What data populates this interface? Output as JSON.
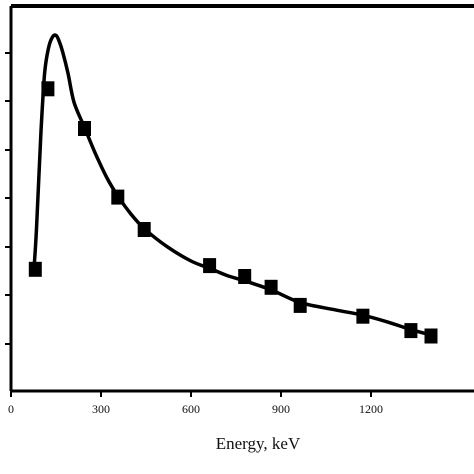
{
  "chart_data": {
    "type": "line",
    "title": "",
    "xlabel": "Energy, keV",
    "ylabel": "",
    "xlim": [
      0,
      1400
    ],
    "xticks": [
      0,
      300,
      600,
      900,
      1200
    ],
    "ylim": [
      0,
      1
    ],
    "y_ticks_count": 8,
    "y_tick_labels_shown": false,
    "grid": false,
    "legend": "none",
    "colors": {
      "line": "#000000",
      "marker": "#000000",
      "axes": "#000000",
      "background": "#ffffff"
    },
    "series": [
      {
        "kind": "markers",
        "x": [
          81,
          123,
          245,
          356,
          444,
          662,
          779,
          867,
          964,
          1173,
          1333,
          1400
        ],
        "y": [
          0.34,
          0.84,
          0.73,
          0.54,
          0.45,
          0.35,
          0.32,
          0.29,
          0.24,
          0.21,
          0.17,
          0.155
        ]
      },
      {
        "kind": "fit-curve",
        "x": [
          75,
          85,
          100,
          112,
          125,
          138,
          150,
          160,
          172,
          190,
          210,
          245,
          280,
          320,
          356,
          400,
          444,
          520,
          600,
          662,
          720,
          779,
          867,
          964,
          1080,
          1173,
          1260,
          1333,
          1400
        ],
        "y": [
          0.32,
          0.45,
          0.72,
          0.88,
          0.95,
          0.98,
          0.985,
          0.97,
          0.94,
          0.88,
          0.8,
          0.73,
          0.66,
          0.59,
          0.54,
          0.49,
          0.45,
          0.4,
          0.36,
          0.34,
          0.32,
          0.305,
          0.28,
          0.245,
          0.225,
          0.21,
          0.19,
          0.17,
          0.155
        ]
      }
    ]
  }
}
